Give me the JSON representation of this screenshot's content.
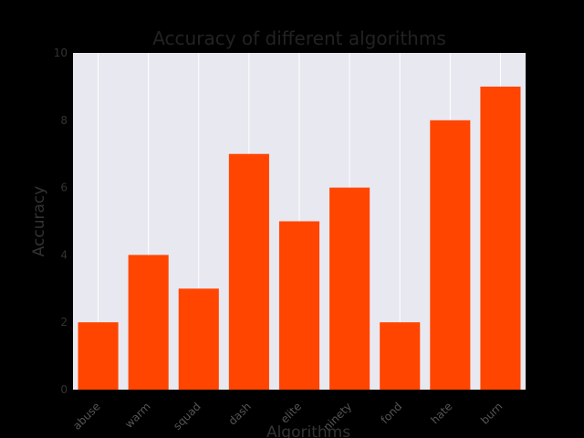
{
  "chart_data": {
    "type": "bar",
    "title": "Accuracy of different algorithms",
    "xlabel": "Algorithms",
    "ylabel": "Accuracy",
    "categories": [
      "abuse",
      "warm",
      "squad",
      "dash",
      "elite",
      "ninety",
      "fond",
      "hate",
      "burn"
    ],
    "values": [
      2,
      4,
      3,
      7,
      5,
      6,
      2,
      8,
      9
    ],
    "ylim": [
      0,
      10
    ],
    "yticks": [
      0,
      2,
      4,
      6,
      8,
      10
    ],
    "grid": true,
    "bar_color": "#ff4500",
    "plot_background": "#e8e8f0",
    "grid_color": "#ffffff"
  }
}
